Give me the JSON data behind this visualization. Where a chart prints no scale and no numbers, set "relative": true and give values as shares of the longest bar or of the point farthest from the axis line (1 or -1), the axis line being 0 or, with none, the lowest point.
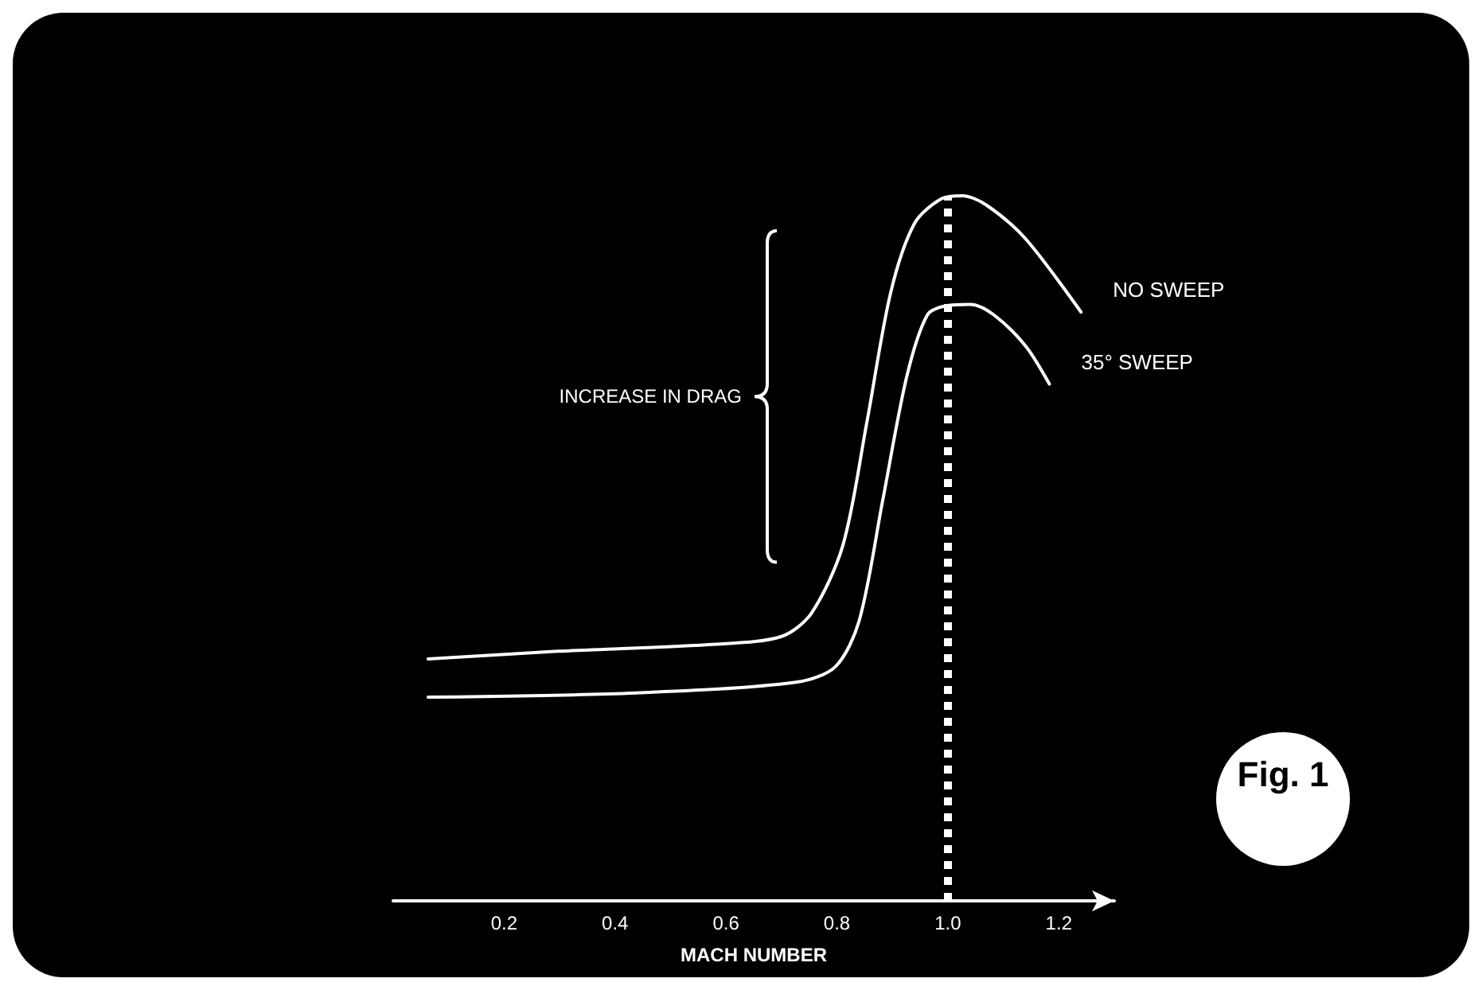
{
  "chart_data": {
    "type": "line",
    "relative": true,
    "xlabel": "MACH NUMBER",
    "xlim": [
      0,
      1.3
    ],
    "xticks": [
      0.2,
      0.4,
      0.6,
      0.8,
      {
        "value": 1,
        "label": "1.0"
      },
      1.2
    ],
    "grid": false,
    "legend": false,
    "marker": "none",
    "line_style": "solid",
    "series": [
      {
        "name": "NO SWEEP",
        "color": "#ffffff",
        "x": [
          0.063,
          0.297,
          0.583,
          0.7,
          0.754,
          0.811,
          0.854,
          0.897,
          0.94,
          0.989,
          1.026,
          1.069,
          1.14,
          1.24
        ],
        "values": [
          0.343,
          0.354,
          0.364,
          0.375,
          0.408,
          0.505,
          0.679,
          0.863,
          0.961,
          0.996,
          1,
          0.987,
          0.939,
          0.835
        ]
      },
      {
        "name": "35° SWEEP",
        "color": "#ffffff",
        "x": [
          0.063,
          0.44,
          0.726,
          0.797,
          0.84,
          0.883,
          0.926,
          0.963,
          0.997,
          1.04,
          1.083,
          1.14,
          1.183
        ],
        "values": [
          0.289,
          0.295,
          0.31,
          0.332,
          0.397,
          0.57,
          0.744,
          0.831,
          0.844,
          0.846,
          0.831,
          0.787,
          0.733
        ]
      }
    ],
    "ref_lines": [
      {
        "axis": "x",
        "value": 1.0,
        "color": "#ffffff",
        "line_style": "dotted"
      }
    ],
    "annotations": [
      "INCREASE IN DRAG",
      "Fig. 1"
    ]
  }
}
